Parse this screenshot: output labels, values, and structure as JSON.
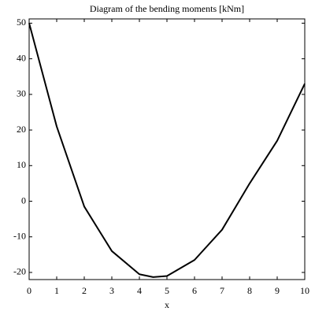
{
  "chart_data": {
    "type": "line",
    "title": "Diagram of the bending moments [kNm]",
    "x_label": "x",
    "x": [
      0,
      1,
      2,
      3,
      4,
      4.5,
      5,
      6,
      7,
      8,
      9,
      10
    ],
    "series": [
      {
        "color": "#000000",
        "values": [
          50,
          21,
          -1.5,
          -14,
          -20.5,
          -21.3,
          -21,
          -16.5,
          -8,
          5,
          17,
          33
        ]
      }
    ],
    "xlim": [
      0,
      10
    ],
    "ylim": [
      -22,
      51.2
    ],
    "xticks": [
      0,
      1,
      2,
      3,
      4,
      5,
      6,
      7,
      8,
      9,
      10
    ],
    "yticks": [
      -20,
      -10,
      0,
      10,
      20,
      30,
      40,
      50
    ]
  }
}
